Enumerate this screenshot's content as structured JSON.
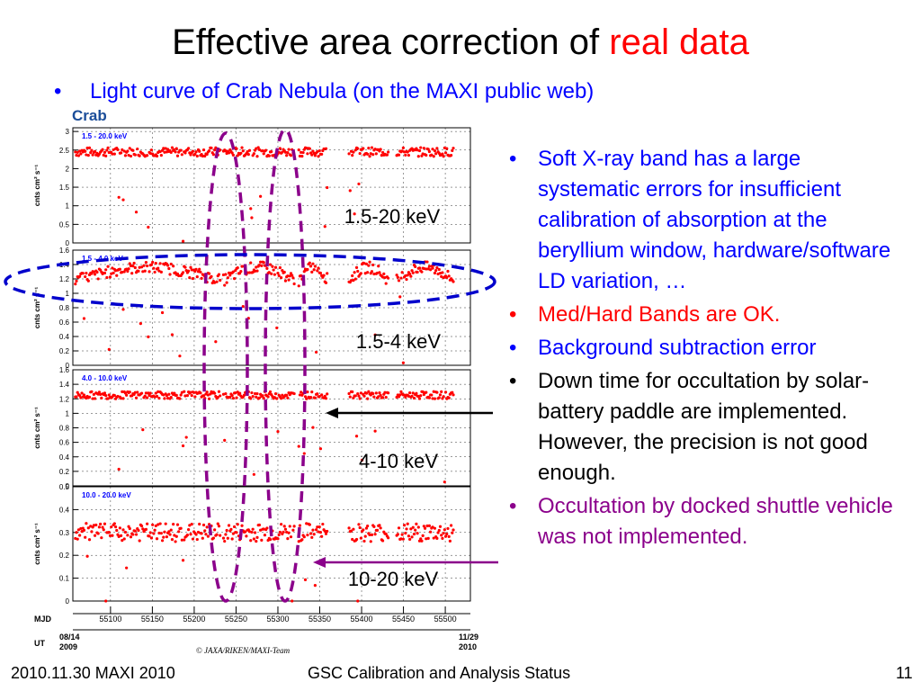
{
  "slide": {
    "title_main": "Effective area correction of ",
    "title_highlight": "real data",
    "subtitle": "Light curve of Crab Nebula (on the MAXI public web)",
    "bullets": [
      {
        "text": "Soft X-ray band has a large systematic errors for insufficient calibration of absorption at the beryllium window, hardware/software LD variation, …",
        "color": "#0000ff"
      },
      {
        "text": "Med/Hard Bands are OK.",
        "color": "#ff0000"
      },
      {
        "text": "Background subtraction error",
        "color": "#0000ff"
      },
      {
        "text": "Down time for occultation by solar-battery paddle are implemented. However, the precision is not good enough.",
        "color": "#000000"
      },
      {
        "text": "Occultation by docked shuttle vehicle was not implemented.",
        "color": "#8b008b"
      }
    ],
    "footer_left": "2010.11.30 MAXI 2010",
    "footer_center": "GSC Calibration and Analysis Status",
    "footer_page": "11"
  },
  "chart_data": {
    "type": "scatter",
    "source": "Crab",
    "ylabel": "cnts cm² s⁻¹",
    "xlim": [
      55055,
      55530
    ],
    "x_ticks": [
      55100,
      55150,
      55200,
      55250,
      55300,
      55350,
      55400,
      55450,
      55500
    ],
    "mjd_label": "MJD",
    "ut_label": "UT",
    "ut_start": [
      "08/14",
      "2009"
    ],
    "ut_end": [
      "11/29",
      "2010"
    ],
    "credit": "© JAXA/RIKEN/MAXI-Team",
    "band_annotations": [
      "1.5-20 keV",
      "1.5-4 keV",
      "4-10 keV",
      "10-20 keV"
    ],
    "panels": [
      {
        "band": "1.5 - 20.0 keV",
        "ylim": [
          0,
          3.1
        ],
        "yticks": [
          0,
          0.5,
          1,
          1.5,
          2,
          2.5,
          3
        ],
        "ytick_labels": [
          "0",
          "0.5",
          "1",
          "1.5",
          "2",
          "2.5",
          "3"
        ],
        "level": 2.45,
        "scatter": 0.12
      },
      {
        "band": "1.5 - 4.0 keV",
        "ylim": [
          0,
          1.6
        ],
        "yticks": [
          0,
          0.2,
          0.4,
          0.6,
          0.8,
          1,
          1.2,
          1.4,
          1.6
        ],
        "ytick_labels": [
          "0",
          "0.2",
          "0.4",
          "0.6",
          "0.8",
          "1",
          "1.2",
          "1.4",
          "1.6"
        ],
        "level": 1.3,
        "scatter": 0.08
      },
      {
        "band": "4.0 - 10.0 keV",
        "ylim": [
          0,
          1.6
        ],
        "yticks": [
          0,
          0.2,
          0.4,
          0.6,
          0.8,
          1,
          1.2,
          1.4,
          1.6
        ],
        "ytick_labels": [
          "0",
          "0.2",
          "0.4",
          "0.6",
          "0.8",
          "1",
          "1.2",
          "1.4",
          "1.6"
        ],
        "level": 1.25,
        "scatter": 0.05
      },
      {
        "band": "10.0 - 20.0 keV",
        "ylim": [
          0,
          0.5
        ],
        "yticks": [
          0,
          0.1,
          0.2,
          0.3,
          0.4,
          0.5
        ],
        "ytick_labels": [
          "0",
          "0.1",
          "0.2",
          "0.3",
          "0.4",
          "0.5"
        ],
        "level": 0.3,
        "scatter": 0.04
      }
    ],
    "observing_segments": [
      [
        55058,
        55232
      ],
      [
        55235,
        55320
      ],
      [
        55325,
        55360
      ],
      [
        55385,
        55432
      ],
      [
        55442,
        55510
      ]
    ],
    "colors": {
      "data": "#ff0000",
      "frame": "#000000",
      "band_label": "#0000ff",
      "panel_box": "#0000ff"
    }
  }
}
